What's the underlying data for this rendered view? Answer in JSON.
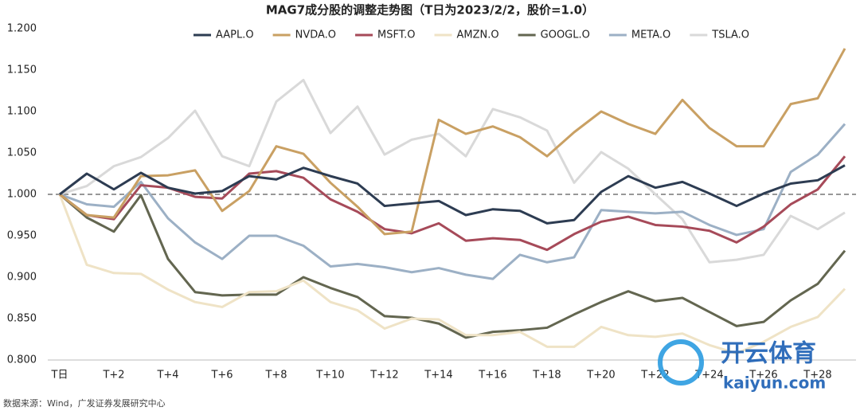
{
  "chart_data": {
    "type": "line",
    "title": "MAG7成分股的调整走势图（T日为2023/2/2，股价=1.0）",
    "categories": [
      "T日",
      null,
      "T+2",
      null,
      "T+4",
      null,
      "T+6",
      null,
      "T+8",
      null,
      "T+10",
      null,
      "T+12",
      null,
      "T+14",
      null,
      "T+16",
      null,
      "T+18",
      null,
      "T+20",
      null,
      "T+22",
      null,
      "T+24",
      null,
      "T+26",
      null,
      "T+28",
      null
    ],
    "series": [
      {
        "name": "AAPL.O",
        "color": "#2d3c52",
        "values": [
          1.0,
          1.025,
          1.006,
          1.026,
          1.008,
          1.001,
          1.004,
          1.022,
          1.018,
          1.032,
          1.022,
          1.013,
          0.986,
          0.989,
          0.992,
          0.975,
          0.982,
          0.98,
          0.965,
          0.969,
          1.003,
          1.022,
          1.008,
          1.015,
          1.001,
          0.986,
          1.001,
          1.013,
          1.017,
          1.035
        ]
      },
      {
        "name": "NVDA.O",
        "color": "#c9a063",
        "values": [
          1.0,
          0.975,
          0.972,
          1.022,
          1.023,
          1.029,
          0.98,
          1.004,
          1.058,
          1.049,
          1.014,
          0.985,
          0.952,
          0.955,
          1.09,
          1.073,
          1.082,
          1.069,
          1.046,
          1.075,
          1.1,
          1.085,
          1.073,
          1.114,
          1.08,
          1.058,
          1.058,
          1.109,
          1.116,
          1.176
        ]
      },
      {
        "name": "MSFT.O",
        "color": "#a64a59",
        "values": [
          1.0,
          0.975,
          0.97,
          1.011,
          1.008,
          0.997,
          0.995,
          1.025,
          1.028,
          1.02,
          0.994,
          0.979,
          0.958,
          0.953,
          0.965,
          0.944,
          0.947,
          0.945,
          0.933,
          0.952,
          0.967,
          0.973,
          0.963,
          0.961,
          0.956,
          0.942,
          0.961,
          0.988,
          1.006,
          1.046
        ]
      },
      {
        "name": "AMZN.O",
        "color": "#efe3c6",
        "values": [
          1.0,
          0.915,
          0.905,
          0.904,
          0.885,
          0.87,
          0.864,
          0.882,
          0.883,
          0.896,
          0.87,
          0.86,
          0.838,
          0.85,
          0.849,
          0.83,
          0.83,
          0.834,
          0.816,
          0.816,
          0.84,
          0.83,
          0.828,
          0.832,
          0.818,
          0.808,
          0.822,
          0.84,
          0.852,
          0.886
        ]
      },
      {
        "name": "GOOGL.O",
        "color": "#636650",
        "values": [
          1.0,
          0.972,
          0.955,
          0.999,
          0.922,
          0.882,
          0.878,
          0.879,
          0.879,
          0.9,
          0.887,
          0.876,
          0.853,
          0.851,
          0.844,
          0.827,
          0.834,
          0.836,
          0.839,
          0.855,
          0.87,
          0.883,
          0.871,
          0.875,
          0.858,
          0.841,
          0.846,
          0.872,
          0.892,
          0.932
        ]
      },
      {
        "name": "META.O",
        "color": "#9cb0c5",
        "values": [
          1.0,
          0.988,
          0.985,
          1.015,
          0.971,
          0.942,
          0.922,
          0.95,
          0.95,
          0.938,
          0.913,
          0.916,
          0.912,
          0.906,
          0.911,
          0.903,
          0.898,
          0.927,
          0.918,
          0.924,
          0.981,
          0.979,
          0.977,
          0.979,
          0.963,
          0.951,
          0.958,
          1.027,
          1.048,
          1.085
        ]
      },
      {
        "name": "TSLA.O",
        "color": "#d9d9d9",
        "values": [
          1.0,
          1.01,
          1.034,
          1.045,
          1.068,
          1.101,
          1.046,
          1.034,
          1.112,
          1.138,
          1.074,
          1.106,
          1.048,
          1.066,
          1.073,
          1.046,
          1.103,
          1.093,
          1.077,
          1.014,
          1.051,
          1.031,
          1.0,
          0.97,
          0.918,
          0.921,
          0.927,
          0.974,
          0.958,
          0.978
        ]
      }
    ],
    "ylim": [
      0.8,
      1.2
    ],
    "yticks": [
      {
        "value": 0.8,
        "label": "0.800"
      },
      {
        "value": 0.85,
        "label": "0.850"
      },
      {
        "value": 0.9,
        "label": "0.900"
      },
      {
        "value": 0.95,
        "label": "0.950"
      },
      {
        "value": 1.0,
        "label": "1.000"
      },
      {
        "value": 1.05,
        "label": "1.050"
      },
      {
        "value": 1.1,
        "label": "1.100"
      },
      {
        "value": 1.15,
        "label": "1.150"
      },
      {
        "value": 1.2,
        "label": "1.200"
      }
    ],
    "reference_line": 1.0,
    "legend": "top",
    "source": "数据来源：Wind，广发证券发展研究中心"
  },
  "watermark": {
    "name": "开云体育",
    "url": "kaiyun.com"
  }
}
